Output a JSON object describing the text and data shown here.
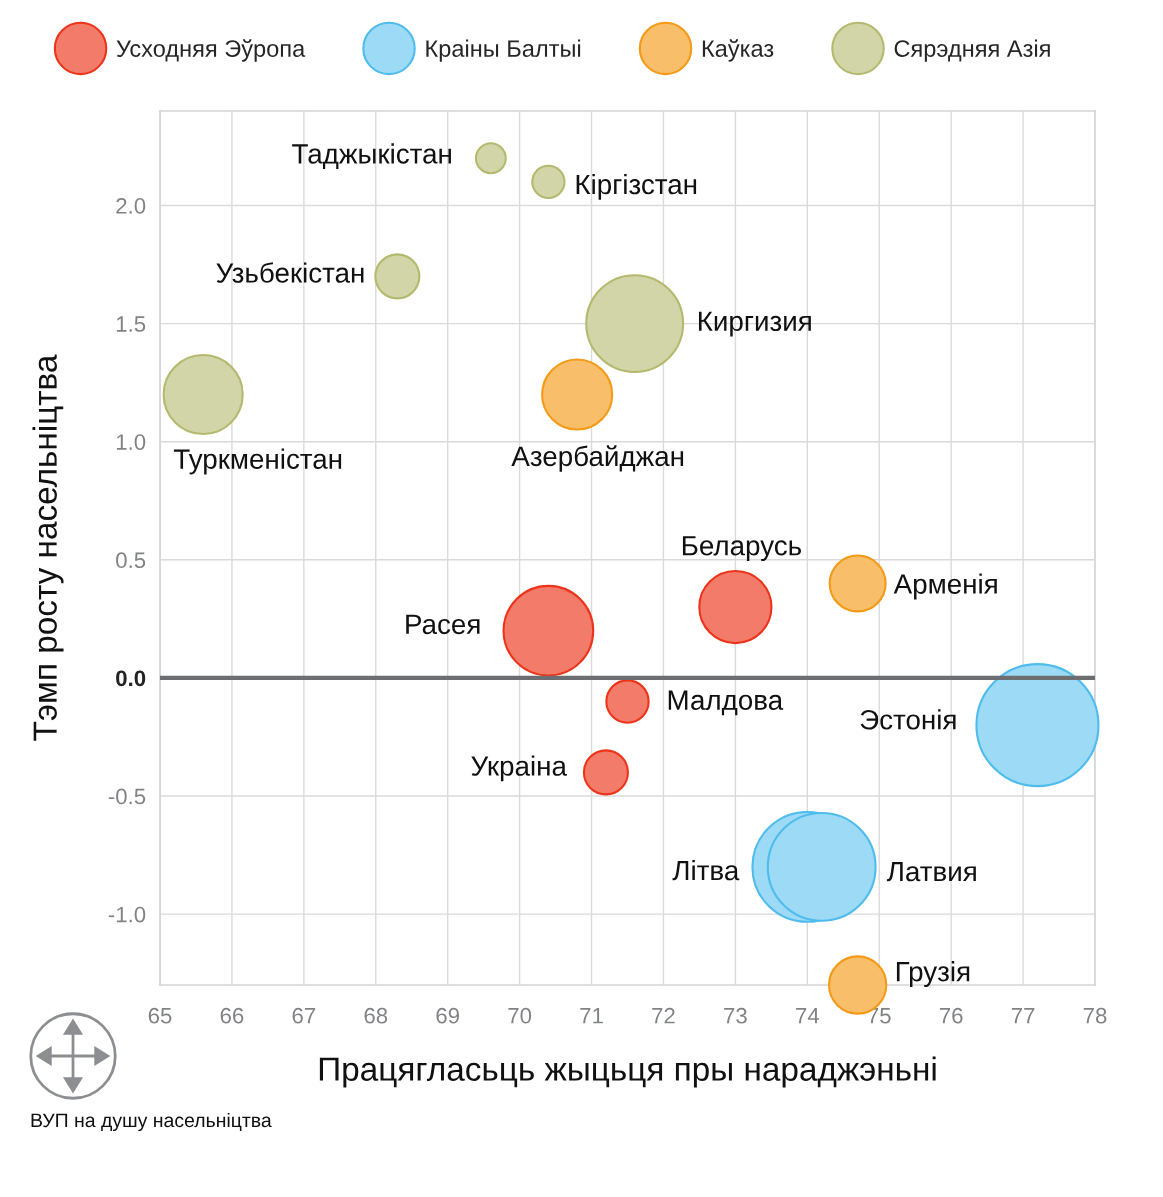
{
  "chart_data": {
    "type": "bubble",
    "xlabel": "Працягласьць жыцьця пры нараджэньні",
    "ylabel": "Тэмп росту насельніцтва",
    "xlim": [
      65,
      78
    ],
    "xticks": [
      65,
      66,
      67,
      68,
      69,
      70,
      71,
      72,
      73,
      74,
      75,
      76,
      77,
      78
    ],
    "ylim": [
      -1.3,
      2.4
    ],
    "yticks": [
      {
        "value": -1,
        "label": "-1.0"
      },
      {
        "value": -0.5,
        "label": "-0.5"
      },
      {
        "value": 0,
        "label": "0.0"
      },
      {
        "value": 0.5,
        "label": "0.5"
      },
      {
        "value": 1,
        "label": "1.0"
      },
      {
        "value": 1.5,
        "label": "1.5"
      },
      {
        "value": 2,
        "label": "2.0"
      }
    ],
    "grid": true,
    "legend": "top",
    "marker": "circle",
    "ref_lines": [
      {
        "axis": "y",
        "value": 0,
        "color": "#6d6e71"
      }
    ],
    "series": [
      {
        "name": "Усходняя Эўропа",
        "color": "#f37b6a",
        "x": [
          73.0,
          70.4,
          71.5,
          71.2
        ],
        "values": [
          0.3,
          0.2,
          -0.1,
          -0.4
        ],
        "sizes": [
          0.35,
          0.54,
          0.12,
          0.13
        ]
      },
      {
        "name": "Краіны Балтыі",
        "color": "#9ddaf5",
        "x": [
          77.2,
          74.0,
          74.2
        ],
        "values": [
          -0.2,
          -0.8,
          -0.8
        ],
        "sizes": [
          1,
          0.81,
          0.78
        ]
      },
      {
        "name": "Каўказ",
        "color": "#f8be6a",
        "x": [
          70.8,
          74.7,
          74.7
        ],
        "values": [
          1.2,
          0.4,
          -1.3
        ],
        "sizes": [
          0.33,
          0.21,
          0.22
        ]
      },
      {
        "name": "Сярэдняя Азія",
        "color": "#d2d5a8",
        "x": [
          69.6,
          70.4,
          68.3,
          71.6,
          65.6
        ],
        "values": [
          2.2,
          2.1,
          1.7,
          1.5,
          1.2
        ],
        "sizes": [
          0.06,
          0.07,
          0.13,
          0.63,
          0.42
        ]
      }
    ],
    "annotations": [
      {
        "text": "Таджыкістан",
        "x": 69.6,
        "y": 2.2
      },
      {
        "text": "Кіргізстан",
        "x": 70.4,
        "y": 2.1
      },
      {
        "text": "Узьбекістан",
        "x": 68.3,
        "y": 1.7
      },
      {
        "text": "Киргизия",
        "x": 71.6,
        "y": 1.5
      },
      {
        "text": "Туркменістан",
        "x": 65.6,
        "y": 1.2
      },
      {
        "text": "Азербайджан",
        "x": 70.8,
        "y": 1.2
      },
      {
        "text": "Беларусь",
        "x": 73.0,
        "y": 0.3
      },
      {
        "text": "Арменія",
        "x": 74.7,
        "y": 0.4
      },
      {
        "text": "Расея",
        "x": 70.4,
        "y": 0.2
      },
      {
        "text": "Малдова",
        "x": 71.5,
        "y": -0.1
      },
      {
        "text": "Украіна",
        "x": 71.2,
        "y": -0.4
      },
      {
        "text": "Эстонія",
        "x": 77.2,
        "y": -0.2
      },
      {
        "text": "Літва",
        "x": 74.0,
        "y": -0.8
      },
      {
        "text": "Латвия",
        "x": 74.2,
        "y": -0.8
      },
      {
        "text": "Грузія",
        "x": 74.7,
        "y": -1.3
      },
      "ВУП на душу насельніцтва"
    ]
  }
}
